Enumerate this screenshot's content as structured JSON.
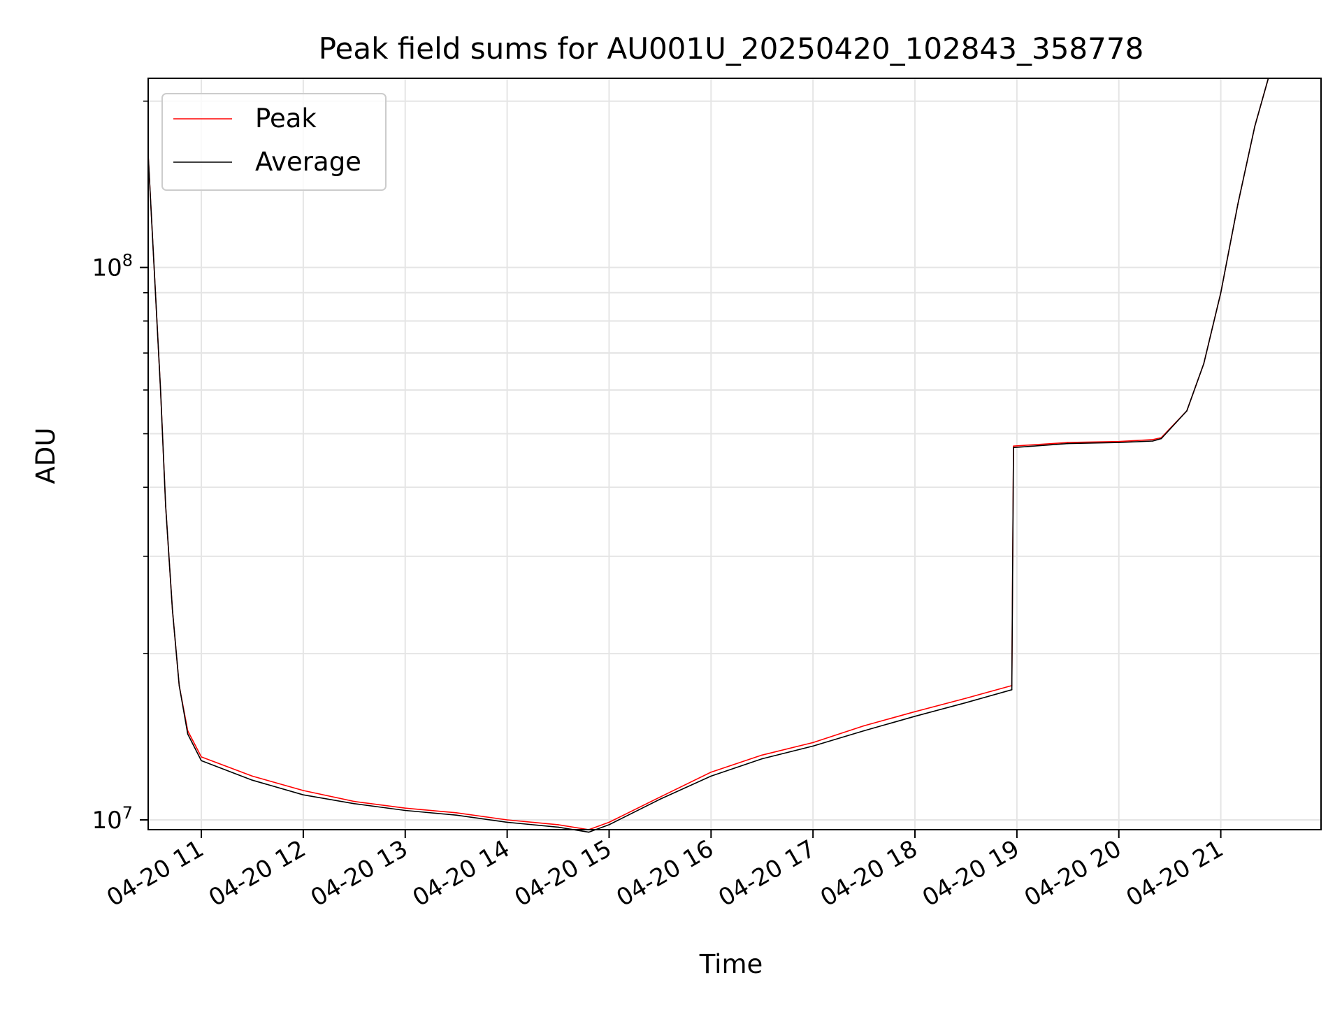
{
  "chart_data": {
    "type": "line",
    "title": "Peak field sums for AU001U_20250420_102843_358778",
    "xlabel": "Time",
    "ylabel": "ADU",
    "y_scale": "log",
    "ylim": [
      9600000,
      220000000
    ],
    "xlim": [
      "2025-04-20 10:28:43",
      "2025-04-20 21:59:00"
    ],
    "x_ticks": [
      "2025-04-20 11:00",
      "2025-04-20 12:00",
      "2025-04-20 13:00",
      "2025-04-20 14:00",
      "2025-04-20 15:00",
      "2025-04-20 16:00",
      "2025-04-20 17:00",
      "2025-04-20 18:00",
      "2025-04-20 19:00",
      "2025-04-20 20:00",
      "2025-04-20 21:00"
    ],
    "x_tick_labels": [
      "04-20 11",
      "04-20 12",
      "04-20 13",
      "04-20 14",
      "04-20 15",
      "04-20 16",
      "04-20 17",
      "04-20 18",
      "04-20 19",
      "04-20 20",
      "04-20 21"
    ],
    "y_ticks_major": [
      10000000,
      100000000
    ],
    "y_tick_labels": [
      "10",
      "10"
    ],
    "y_tick_exponents": [
      "7",
      "8"
    ],
    "grid": true,
    "legend_position": "top-left",
    "series": [
      {
        "name": "Peak",
        "color": "#ff0000",
        "points": [
          [
            "2025-04-20 10:28:43",
            160000000
          ],
          [
            "2025-04-20 10:33",
            90000000
          ],
          [
            "2025-04-20 10:36",
            60000000
          ],
          [
            "2025-04-20 10:39",
            37000000
          ],
          [
            "2025-04-20 10:43",
            24000000
          ],
          [
            "2025-04-20 10:47",
            17500000
          ],
          [
            "2025-04-20 10:52",
            14500000
          ],
          [
            "2025-04-20 11:00",
            13000000
          ],
          [
            "2025-04-20 11:30",
            12000000
          ],
          [
            "2025-04-20 12:00",
            11300000
          ],
          [
            "2025-04-20 12:30",
            10800000
          ],
          [
            "2025-04-20 13:00",
            10500000
          ],
          [
            "2025-04-20 13:30",
            10300000
          ],
          [
            "2025-04-20 14:00",
            10000000
          ],
          [
            "2025-04-20 14:30",
            9800000
          ],
          [
            "2025-04-20 14:48",
            9600000
          ],
          [
            "2025-04-20 15:00",
            9900000
          ],
          [
            "2025-04-20 15:30",
            11000000
          ],
          [
            "2025-04-20 16:00",
            12200000
          ],
          [
            "2025-04-20 16:30",
            13100000
          ],
          [
            "2025-04-20 17:00",
            13800000
          ],
          [
            "2025-04-20 17:30",
            14800000
          ],
          [
            "2025-04-20 18:00",
            15700000
          ],
          [
            "2025-04-20 18:30",
            16600000
          ],
          [
            "2025-04-20 18:57",
            17500000
          ],
          [
            "2025-04-20 18:58",
            47500000
          ],
          [
            "2025-04-20 19:30",
            48200000
          ],
          [
            "2025-04-20 20:00",
            48400000
          ],
          [
            "2025-04-20 20:20",
            48800000
          ],
          [
            "2025-04-20 20:25",
            49200000
          ],
          [
            "2025-04-20 20:40",
            55000000
          ],
          [
            "2025-04-20 20:50",
            67000000
          ],
          [
            "2025-04-20 21:00",
            90000000
          ],
          [
            "2025-04-20 21:10",
            130000000
          ],
          [
            "2025-04-20 21:20",
            180000000
          ],
          [
            "2025-04-20 21:28",
            220000000
          ]
        ]
      },
      {
        "name": "Average",
        "color": "#000000",
        "points": [
          [
            "2025-04-20 10:28:43",
            160000000
          ],
          [
            "2025-04-20 10:33",
            90000000
          ],
          [
            "2025-04-20 10:36",
            60000000
          ],
          [
            "2025-04-20 10:39",
            37000000
          ],
          [
            "2025-04-20 10:43",
            24000000
          ],
          [
            "2025-04-20 10:47",
            17500000
          ],
          [
            "2025-04-20 10:52",
            14300000
          ],
          [
            "2025-04-20 11:00",
            12800000
          ],
          [
            "2025-04-20 11:30",
            11800000
          ],
          [
            "2025-04-20 12:00",
            11100000
          ],
          [
            "2025-04-20 12:30",
            10700000
          ],
          [
            "2025-04-20 13:00",
            10400000
          ],
          [
            "2025-04-20 13:30",
            10200000
          ],
          [
            "2025-04-20 14:00",
            9900000
          ],
          [
            "2025-04-20 14:30",
            9700000
          ],
          [
            "2025-04-20 14:48",
            9500000
          ],
          [
            "2025-04-20 15:00",
            9800000
          ],
          [
            "2025-04-20 15:30",
            10900000
          ],
          [
            "2025-04-20 16:00",
            12000000
          ],
          [
            "2025-04-20 16:30",
            12900000
          ],
          [
            "2025-04-20 17:00",
            13600000
          ],
          [
            "2025-04-20 17:30",
            14500000
          ],
          [
            "2025-04-20 18:00",
            15400000
          ],
          [
            "2025-04-20 18:30",
            16300000
          ],
          [
            "2025-04-20 18:57",
            17200000
          ],
          [
            "2025-04-20 18:58",
            47200000
          ],
          [
            "2025-04-20 19:30",
            48000000
          ],
          [
            "2025-04-20 20:00",
            48200000
          ],
          [
            "2025-04-20 20:20",
            48500000
          ],
          [
            "2025-04-20 20:25",
            49000000
          ],
          [
            "2025-04-20 20:40",
            55000000
          ],
          [
            "2025-04-20 20:50",
            67000000
          ],
          [
            "2025-04-20 21:00",
            90000000
          ],
          [
            "2025-04-20 21:10",
            130000000
          ],
          [
            "2025-04-20 21:20",
            180000000
          ],
          [
            "2025-04-20 21:28",
            220000000
          ]
        ]
      }
    ]
  }
}
